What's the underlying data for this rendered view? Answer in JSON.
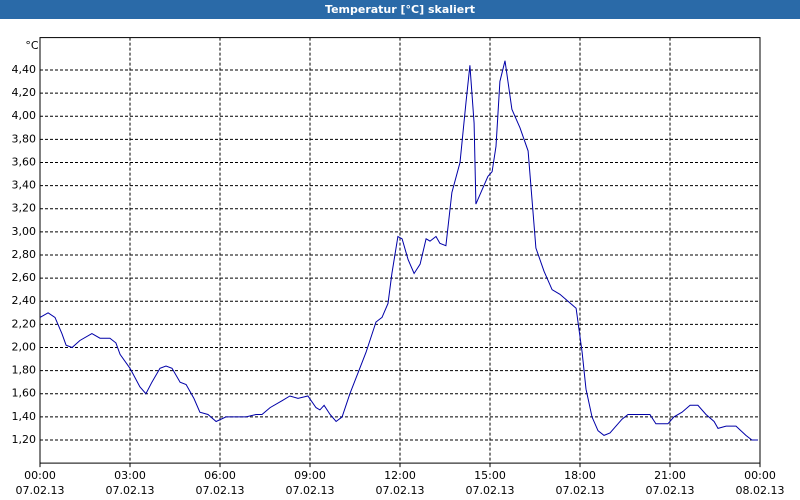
{
  "chart_data": {
    "type": "line",
    "title": "Temperatur [°C] skaliert",
    "y_unit": "°C",
    "x": [
      0,
      0.27,
      0.5,
      0.73,
      0.87,
      1.07,
      1.33,
      1.73,
      2,
      2.33,
      2.53,
      2.67,
      3,
      3.33,
      3.53,
      3.73,
      4,
      4.2,
      4.4,
      4.67,
      4.87,
      5.13,
      5.33,
      5.6,
      5.87,
      6.2,
      6.53,
      6.87,
      7.2,
      7.4,
      7.67,
      8.07,
      8.33,
      8.6,
      8.93,
      9.2,
      9.33,
      9.47,
      9.67,
      9.87,
      10.07,
      10.33,
      10.6,
      10.87,
      11.2,
      11.4,
      11.6,
      11.73,
      11.93,
      12.07,
      12.27,
      12.47,
      12.67,
      12.87,
      13,
      13.2,
      13.33,
      13.53,
      13.73,
      14,
      14.2,
      14.33,
      14.47,
      14.53,
      14.73,
      14.93,
      15.07,
      15.2,
      15.33,
      15.5,
      15.73,
      16,
      16.27,
      16.53,
      16.8,
      17.07,
      17.33,
      17.6,
      17.87,
      18.07,
      18.2,
      18.4,
      18.6,
      18.8,
      19,
      19.2,
      19.4,
      19.6,
      19.87,
      20.33,
      20.53,
      20.93,
      21.13,
      21.4,
      21.67,
      21.93,
      22.2,
      22.47,
      22.6,
      22.87,
      23.2,
      23.53,
      23.73,
      23.93
    ],
    "series": [
      {
        "name": "Temperatur",
        "color": "#0000a8",
        "values": [
          2.26,
          2.3,
          2.26,
          2.12,
          2.02,
          2,
          2.06,
          2.12,
          2.08,
          2.08,
          2.04,
          1.94,
          1.82,
          1.66,
          1.6,
          1.7,
          1.82,
          1.84,
          1.82,
          1.7,
          1.68,
          1.56,
          1.44,
          1.42,
          1.36,
          1.4,
          1.4,
          1.4,
          1.42,
          1.42,
          1.48,
          1.54,
          1.58,
          1.56,
          1.58,
          1.48,
          1.46,
          1.5,
          1.42,
          1.36,
          1.4,
          1.6,
          1.78,
          1.96,
          2.22,
          2.26,
          2.38,
          2.64,
          2.96,
          2.94,
          2.76,
          2.64,
          2.72,
          2.94,
          2.92,
          2.96,
          2.9,
          2.88,
          3.34,
          3.6,
          4.12,
          4.44,
          3.94,
          3.24,
          3.36,
          3.48,
          3.52,
          3.74,
          4.3,
          4.48,
          4.06,
          3.9,
          3.7,
          2.86,
          2.66,
          2.5,
          2.46,
          2.4,
          2.34,
          1.96,
          1.64,
          1.4,
          1.28,
          1.24,
          1.26,
          1.32,
          1.38,
          1.42,
          1.42,
          1.42,
          1.34,
          1.34,
          1.4,
          1.44,
          1.5,
          1.5,
          1.42,
          1.36,
          1.3,
          1.32,
          1.32,
          1.24,
          1.2,
          1.2
        ]
      }
    ],
    "xlim": [
      0,
      24
    ],
    "xticks": [
      {
        "value": 0,
        "label": "00:00"
      },
      {
        "value": 3,
        "label": "03:00"
      },
      {
        "value": 6,
        "label": "06:00"
      },
      {
        "value": 9,
        "label": "09:00"
      },
      {
        "value": 12,
        "label": "12:00"
      },
      {
        "value": 15,
        "label": "15:00"
      },
      {
        "value": 18,
        "label": "18:00"
      },
      {
        "value": 21,
        "label": "21:00"
      },
      {
        "value": 24,
        "label": "00:00"
      }
    ],
    "xtick_dates": [
      "07.02.13",
      "07.02.13",
      "07.02.13",
      "07.02.13",
      "07.02.13",
      "07.02.13",
      "07.02.13",
      "07.02.13",
      "08.02.13"
    ],
    "ylim": [
      1.0,
      4.68
    ],
    "yticks": [
      {
        "value": 1.2,
        "label": "1,20"
      },
      {
        "value": 1.4,
        "label": "1,40"
      },
      {
        "value": 1.6,
        "label": "1,60"
      },
      {
        "value": 1.8,
        "label": "1,80"
      },
      {
        "value": 2.0,
        "label": "2,00"
      },
      {
        "value": 2.2,
        "label": "2,20"
      },
      {
        "value": 2.4,
        "label": "2,40"
      },
      {
        "value": 2.6,
        "label": "2,60"
      },
      {
        "value": 2.8,
        "label": "2,80"
      },
      {
        "value": 3.0,
        "label": "3,00"
      },
      {
        "value": 3.2,
        "label": "3,20"
      },
      {
        "value": 3.4,
        "label": "3,40"
      },
      {
        "value": 3.6,
        "label": "3,60"
      },
      {
        "value": 3.8,
        "label": "3,80"
      },
      {
        "value": 4.0,
        "label": "4,00"
      },
      {
        "value": 4.2,
        "label": "4,20"
      },
      {
        "value": 4.4,
        "label": "4,40"
      }
    ],
    "grid": true
  }
}
